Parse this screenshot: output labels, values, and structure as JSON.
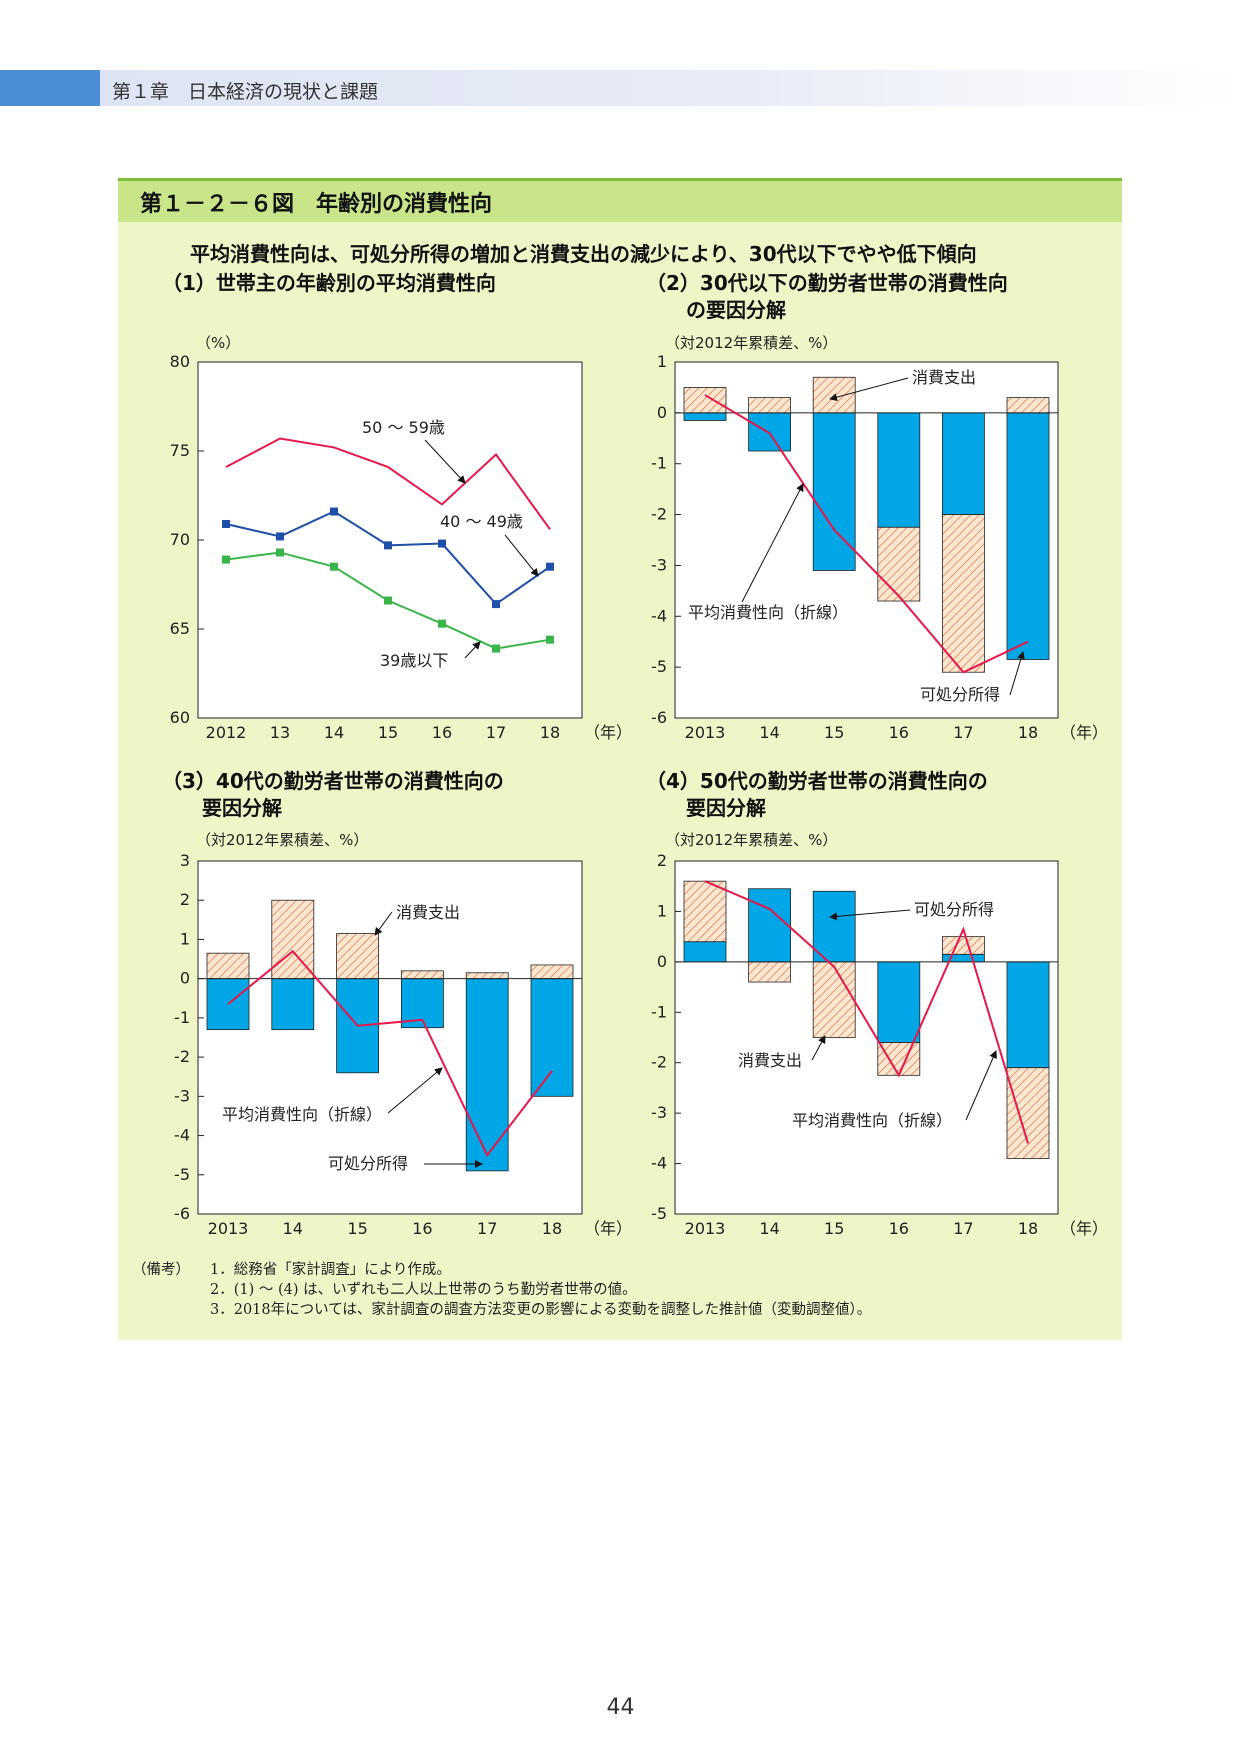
{
  "header": {
    "chapter": "第１章　日本経済の現状と課題"
  },
  "figure": {
    "title": "第１－２－６図　年齢別の消費性向",
    "lead": "平均消費性向は、可処分所得の増加と消費支出の減少により、30代以下でやや低下傾向"
  },
  "panels": {
    "p1": {
      "title": "（1）世帯主の年齢別の平均消費性向",
      "unit": "（%）"
    },
    "p2": {
      "title": "（2）30代以下の勤労者世帯の消費性向\n　　の要因分解",
      "unit": "（対2012年累積差、%）"
    },
    "p3": {
      "title": "（3）40代の勤労者世帯の消費性向の\n　　要因分解",
      "unit": "（対2012年累積差、%）"
    },
    "p4": {
      "title": "（4）50代の勤労者世帯の消費性向の\n　　要因分解",
      "unit": "（対2012年累積差、%）"
    }
  },
  "chart_data": [
    {
      "id": "p1",
      "type": "line",
      "x": [
        "2012",
        "13",
        "14",
        "15",
        "16",
        "17",
        "18"
      ],
      "xunit": "（年）",
      "ylim": [
        60,
        80
      ],
      "yticks": [
        60,
        65,
        70,
        75,
        80
      ],
      "series": [
        {
          "name": "50 ～ 59歳",
          "color": "#e8174a",
          "markers": false,
          "values": [
            74.1,
            75.7,
            75.2,
            74.1,
            72.0,
            74.8,
            70.6
          ]
        },
        {
          "name": "40 ～ 49歳",
          "color": "#1f4fa8",
          "markers": true,
          "values": [
            70.9,
            70.2,
            71.6,
            69.7,
            69.8,
            66.4,
            68.5
          ]
        },
        {
          "name": "39歳以下",
          "color": "#39b54a",
          "markers": true,
          "values": [
            68.9,
            69.3,
            68.5,
            66.6,
            65.3,
            63.9,
            64.4
          ]
        }
      ]
    },
    {
      "id": "p2",
      "type": "bar",
      "categories": [
        "2013",
        "14",
        "15",
        "16",
        "17",
        "18"
      ],
      "xunit": "（年）",
      "ylim": [
        -6,
        1
      ],
      "yticks": [
        -6,
        -5,
        -4,
        -3,
        -2,
        -1,
        0,
        1
      ],
      "series": [
        {
          "name": "可処分所得",
          "values": [
            -0.15,
            -0.75,
            -3.1,
            -2.25,
            -2.0,
            -4.85
          ]
        },
        {
          "name": "消費支出",
          "values": [
            0.5,
            0.3,
            0.7,
            -1.45,
            -3.1,
            0.3
          ]
        },
        {
          "name": "平均消費性向（折線）",
          "values": [
            0.35,
            -0.4,
            -2.3,
            -3.6,
            -5.1,
            -4.5
          ]
        }
      ],
      "labels": {
        "consumption": "消費支出",
        "propensity": "平均消費性向（折線）",
        "income": "可処分所得"
      }
    },
    {
      "id": "p3",
      "type": "bar",
      "categories": [
        "2013",
        "14",
        "15",
        "16",
        "17",
        "18"
      ],
      "xunit": "（年）",
      "ylim": [
        -6,
        3
      ],
      "yticks": [
        -6,
        -5,
        -4,
        -3,
        -2,
        -1,
        0,
        1,
        2,
        3
      ],
      "series": [
        {
          "name": "可処分所得",
          "values": [
            -1.3,
            -1.3,
            -2.4,
            -1.25,
            -4.9,
            -3.0
          ]
        },
        {
          "name": "消費支出",
          "values": [
            0.65,
            2.0,
            1.15,
            0.2,
            0.15,
            0.35
          ]
        },
        {
          "name": "平均消費性向（折線）",
          "values": [
            -0.65,
            0.7,
            -1.2,
            -1.05,
            -4.5,
            -2.35
          ]
        }
      ],
      "labels": {
        "consumption": "消費支出",
        "propensity": "平均消費性向（折線）",
        "income": "可処分所得"
      }
    },
    {
      "id": "p4",
      "type": "bar",
      "categories": [
        "2013",
        "14",
        "15",
        "16",
        "17",
        "18"
      ],
      "xunit": "（年）",
      "ylim": [
        -5,
        2
      ],
      "yticks": [
        -5,
        -4,
        -3,
        -2,
        -1,
        0,
        1,
        2
      ],
      "series": [
        {
          "name": "可処分所得",
          "values": [
            0.4,
            1.45,
            1.4,
            -1.6,
            0.15,
            -2.1
          ]
        },
        {
          "name": "消費支出",
          "values": [
            1.2,
            -0.4,
            -1.5,
            -0.65,
            0.35,
            -1.8
          ]
        },
        {
          "name": "平均消費性向（折線）",
          "values": [
            1.6,
            1.05,
            -0.1,
            -2.25,
            0.65,
            -3.6
          ]
        }
      ],
      "labels": {
        "consumption": "消費支出",
        "propensity": "平均消費性向（折線）",
        "income": "可処分所得"
      }
    }
  ],
  "notes": {
    "head": "（備考）",
    "items": [
      "1．総務省「家計調査」により作成。",
      "2．(1) ～ (4) は、いずれも二人以上世帯のうち勤労者世帯の値。",
      "3．2018年については、家計調査の調査方法変更の影響による変動を調整した推計値（変動調整値）。"
    ]
  },
  "page_number": "44",
  "colors": {
    "bar_income": "#00a6e6",
    "hatch": "#e0743a",
    "hatch_bg": "#fbe6d2",
    "line": "#e8174a"
  }
}
